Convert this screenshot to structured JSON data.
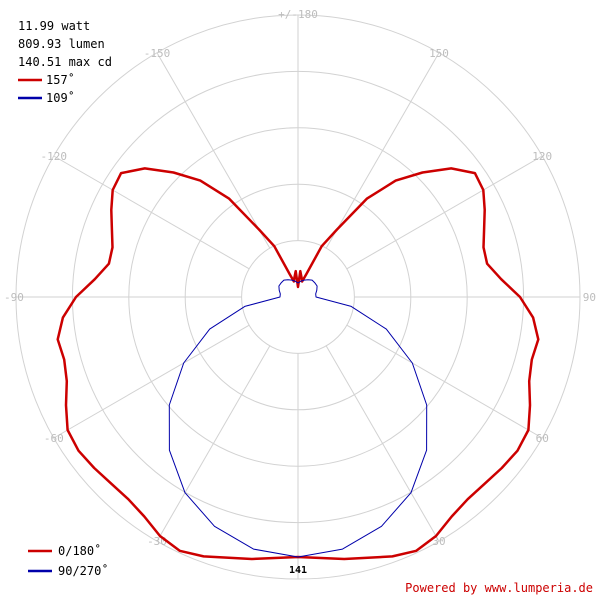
{
  "info": {
    "power": "11.99 watt",
    "flux": "809.93 lumen",
    "max_cd": "140.51 max cd"
  },
  "angle_legend": [
    {
      "label": "157˚",
      "color": "#cc0000"
    },
    {
      "label": "109˚",
      "color": "#0000aa"
    }
  ],
  "plane_legend": [
    {
      "label": "0/180˚",
      "color": "#cc0000"
    },
    {
      "label": "90/270˚",
      "color": "#0000aa"
    }
  ],
  "angle_labels": [
    {
      "text": "+/-180",
      "angle": 180
    },
    {
      "text": "-150",
      "angle": -150
    },
    {
      "text": "150",
      "angle": 150
    },
    {
      "text": "-120",
      "angle": -120
    },
    {
      "text": "120",
      "angle": 120
    },
    {
      "text": "-90",
      "angle": -90
    },
    {
      "text": "90",
      "angle": 90
    },
    {
      "text": "-60",
      "angle": -60
    },
    {
      "text": "60",
      "angle": 60
    },
    {
      "text": "-30",
      "angle": -30
    },
    {
      "text": "30",
      "angle": 30
    }
  ],
  "scale_label": "141",
  "credit": "Powered by www.lumperia.de",
  "chart_data": {
    "type": "polar",
    "r_max_cd": 141,
    "ring_count": 5,
    "angle_step_deg": 30,
    "series": [
      {
        "name": "0/180˚",
        "color": "#cc0000",
        "angles_deg": [
          0,
          10,
          20,
          25,
          30,
          35,
          40,
          45,
          50,
          55,
          60,
          65,
          70,
          75,
          80,
          85,
          90,
          95,
          100,
          105,
          110,
          115,
          120,
          125,
          130,
          135,
          140,
          145,
          150,
          155,
          160,
          165,
          170,
          175,
          180
        ],
        "values_cd": [
          130,
          133,
          138,
          140,
          138,
          134,
          132,
          132,
          133,
          134,
          133,
          128,
          123,
          121,
          122,
          118,
          111,
          102,
          96,
          96,
          99,
          103,
          107,
          108,
          100,
          88,
          76,
          60,
          39,
          28,
          12,
          8,
          10,
          13,
          5
        ]
      },
      {
        "name": "90/270˚",
        "color": "#0000aa",
        "angles_deg": [
          0,
          10,
          20,
          30,
          40,
          50,
          60,
          70,
          80,
          90,
          100,
          110,
          120,
          130,
          140,
          150,
          160,
          170,
          180
        ],
        "values_cd": [
          130,
          128,
          122,
          113,
          100,
          84,
          66,
          47,
          27,
          9,
          9,
          10,
          11,
          11,
          11,
          10,
          9,
          8,
          7
        ]
      }
    ]
  }
}
